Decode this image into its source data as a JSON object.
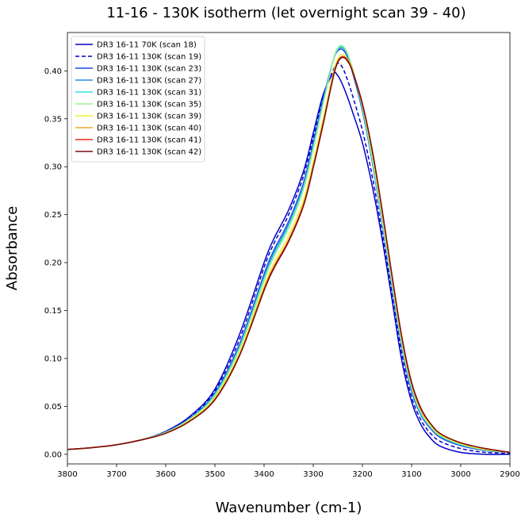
{
  "chart_data": {
    "type": "line",
    "title": "11-16 - 130K isotherm (let overnight scan 39 - 40)",
    "xlabel": "Wavenumber (cm-1)",
    "ylabel": "Absorbance",
    "xlim": [
      3800,
      2900
    ],
    "ylim": [
      -0.01,
      0.44
    ],
    "x_reversed": true,
    "x_ticks": [
      3800,
      3700,
      3600,
      3500,
      3400,
      3300,
      3200,
      3100,
      3000,
      2900
    ],
    "y_ticks": [
      0.0,
      0.05,
      0.1,
      0.15,
      0.2,
      0.25,
      0.3,
      0.35,
      0.4
    ],
    "y_tick_labels": [
      "0.00",
      "0.05",
      "0.10",
      "0.15",
      "0.20",
      "0.25",
      "0.30",
      "0.35",
      "0.40"
    ],
    "legend_position": "top-left",
    "grid": false,
    "x": [
      3800,
      3750,
      3700,
      3650,
      3600,
      3550,
      3500,
      3450,
      3400,
      3380,
      3350,
      3320,
      3300,
      3280,
      3260,
      3250,
      3240,
      3230,
      3220,
      3200,
      3180,
      3160,
      3140,
      3120,
      3100,
      3080,
      3060,
      3040,
      3000,
      2950,
      2900
    ],
    "series": [
      {
        "name": "DR3 16-11 70K (scan 18)",
        "color": "#0000cc",
        "dash": "solid",
        "values": [
          0.005,
          0.007,
          0.01,
          0.015,
          0.024,
          0.04,
          0.068,
          0.125,
          0.2,
          0.225,
          0.255,
          0.295,
          0.335,
          0.375,
          0.397,
          0.395,
          0.385,
          0.372,
          0.357,
          0.325,
          0.28,
          0.225,
          0.162,
          0.098,
          0.055,
          0.03,
          0.016,
          0.008,
          0.002,
          0.0,
          0.0
        ]
      },
      {
        "name": "DR3 16-11 130K (scan 19)",
        "color": "#0000cc",
        "dash": "5,3",
        "values": [
          0.005,
          0.007,
          0.01,
          0.015,
          0.024,
          0.039,
          0.066,
          0.12,
          0.195,
          0.22,
          0.25,
          0.29,
          0.33,
          0.372,
          0.4,
          0.408,
          0.403,
          0.39,
          0.374,
          0.338,
          0.29,
          0.232,
          0.168,
          0.105,
          0.06,
          0.035,
          0.021,
          0.013,
          0.006,
          0.002,
          0.001
        ]
      },
      {
        "name": "DR3 16-11 130K (scan 23)",
        "color": "#1a4de6",
        "dash": "solid",
        "values": [
          0.005,
          0.007,
          0.01,
          0.015,
          0.023,
          0.038,
          0.064,
          0.115,
          0.188,
          0.213,
          0.243,
          0.283,
          0.325,
          0.37,
          0.41,
          0.421,
          0.422,
          0.414,
          0.398,
          0.358,
          0.305,
          0.242,
          0.175,
          0.112,
          0.066,
          0.04,
          0.026,
          0.017,
          0.009,
          0.004,
          0.002
        ]
      },
      {
        "name": "DR3 16-11 130K (scan 27)",
        "color": "#2e8ce6",
        "dash": "solid",
        "values": [
          0.005,
          0.007,
          0.01,
          0.015,
          0.023,
          0.038,
          0.063,
          0.113,
          0.185,
          0.21,
          0.24,
          0.28,
          0.322,
          0.368,
          0.41,
          0.422,
          0.424,
          0.416,
          0.4,
          0.36,
          0.307,
          0.244,
          0.177,
          0.114,
          0.068,
          0.041,
          0.027,
          0.018,
          0.01,
          0.004,
          0.002
        ]
      },
      {
        "name": "DR3 16-11 130K (scan 31)",
        "color": "#33e6d9",
        "dash": "solid",
        "values": [
          0.005,
          0.007,
          0.01,
          0.015,
          0.023,
          0.037,
          0.062,
          0.111,
          0.183,
          0.208,
          0.238,
          0.278,
          0.32,
          0.366,
          0.41,
          0.423,
          0.425,
          0.417,
          0.401,
          0.361,
          0.308,
          0.245,
          0.178,
          0.115,
          0.069,
          0.042,
          0.028,
          0.019,
          0.01,
          0.005,
          0.002
        ]
      },
      {
        "name": "DR3 16-11 130K (scan 35)",
        "color": "#99f28c",
        "dash": "solid",
        "values": [
          0.005,
          0.007,
          0.01,
          0.015,
          0.023,
          0.037,
          0.061,
          0.11,
          0.181,
          0.206,
          0.236,
          0.276,
          0.318,
          0.365,
          0.41,
          0.424,
          0.426,
          0.418,
          0.402,
          0.362,
          0.309,
          0.246,
          0.179,
          0.116,
          0.07,
          0.043,
          0.028,
          0.019,
          0.011,
          0.005,
          0.002
        ]
      },
      {
        "name": "DR3 16-11 130K (scan 39)",
        "color": "#f2f233",
        "dash": "solid",
        "values": [
          0.005,
          0.007,
          0.01,
          0.015,
          0.022,
          0.036,
          0.059,
          0.106,
          0.176,
          0.199,
          0.228,
          0.265,
          0.305,
          0.35,
          0.396,
          0.412,
          0.417,
          0.412,
          0.4,
          0.365,
          0.315,
          0.252,
          0.184,
          0.12,
          0.073,
          0.045,
          0.03,
          0.02,
          0.011,
          0.005,
          0.002
        ]
      },
      {
        "name": "DR3 16-11 130K (scan 40)",
        "color": "#f2a626",
        "dash": "solid",
        "values": [
          0.005,
          0.007,
          0.01,
          0.015,
          0.022,
          0.035,
          0.058,
          0.104,
          0.173,
          0.196,
          0.224,
          0.261,
          0.301,
          0.346,
          0.393,
          0.409,
          0.414,
          0.41,
          0.399,
          0.365,
          0.316,
          0.254,
          0.186,
          0.122,
          0.074,
          0.046,
          0.031,
          0.021,
          0.012,
          0.006,
          0.002
        ]
      },
      {
        "name": "DR3 16-11 130K (scan 41)",
        "color": "#e62e1a",
        "dash": "solid",
        "values": [
          0.005,
          0.007,
          0.01,
          0.015,
          0.022,
          0.035,
          0.057,
          0.103,
          0.172,
          0.195,
          0.223,
          0.26,
          0.3,
          0.345,
          0.393,
          0.41,
          0.415,
          0.411,
          0.4,
          0.366,
          0.317,
          0.255,
          0.187,
          0.122,
          0.074,
          0.046,
          0.031,
          0.021,
          0.012,
          0.006,
          0.002
        ]
      },
      {
        "name": "DR3 16-11 130K (scan 42)",
        "color": "#7a0d0d",
        "dash": "solid",
        "values": [
          0.005,
          0.007,
          0.01,
          0.015,
          0.022,
          0.035,
          0.057,
          0.103,
          0.171,
          0.194,
          0.222,
          0.259,
          0.299,
          0.344,
          0.392,
          0.409,
          0.414,
          0.41,
          0.399,
          0.365,
          0.317,
          0.255,
          0.187,
          0.123,
          0.075,
          0.047,
          0.031,
          0.021,
          0.012,
          0.006,
          0.002
        ]
      }
    ]
  }
}
